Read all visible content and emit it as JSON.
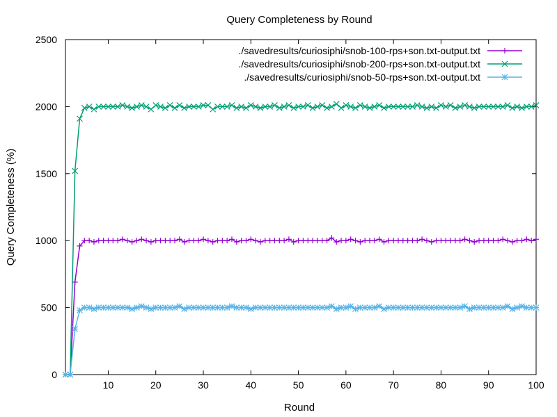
{
  "chart_data": {
    "type": "line",
    "title": "Query Completeness by Round",
    "xlabel": "Round",
    "ylabel": "Query Completeness (%)",
    "xlim": [
      1,
      100
    ],
    "ylim": [
      0,
      2500
    ],
    "xticks": [
      10,
      20,
      30,
      40,
      50,
      60,
      70,
      80,
      90,
      100
    ],
    "yticks": [
      0,
      500,
      1000,
      1500,
      2000,
      2500
    ],
    "grid": false,
    "legend_position": "top-right",
    "x": [
      1,
      2,
      3,
      4,
      5,
      6,
      7,
      8,
      9,
      10,
      11,
      12,
      13,
      14,
      15,
      16,
      17,
      18,
      19,
      20,
      21,
      22,
      23,
      24,
      25,
      26,
      27,
      28,
      29,
      30,
      31,
      32,
      33,
      34,
      35,
      36,
      37,
      38,
      39,
      40,
      41,
      42,
      43,
      44,
      45,
      46,
      47,
      48,
      49,
      50,
      51,
      52,
      53,
      54,
      55,
      56,
      57,
      58,
      59,
      60,
      61,
      62,
      63,
      64,
      65,
      66,
      67,
      68,
      69,
      70,
      71,
      72,
      73,
      74,
      75,
      76,
      77,
      78,
      79,
      80,
      81,
      82,
      83,
      84,
      85,
      86,
      87,
      88,
      89,
      90,
      91,
      92,
      93,
      94,
      95,
      96,
      97,
      98,
      99,
      100
    ],
    "series": [
      {
        "name": "./savedresults/curiosiphi/snob-100-rps+son.txt-output.txt",
        "color": "#9400d3",
        "marker": "plus",
        "values": [
          0,
          0,
          690,
          960,
          1000,
          1000,
          990,
          1000,
          1000,
          1000,
          1000,
          1000,
          1010,
          1000,
          990,
          1000,
          1010,
          1000,
          990,
          1000,
          1000,
          1000,
          1000,
          1000,
          1010,
          990,
          1000,
          1000,
          1000,
          1010,
          1000,
          990,
          1000,
          1000,
          1000,
          1010,
          990,
          1000,
          1000,
          1010,
          1000,
          990,
          1000,
          1000,
          1000,
          1000,
          1000,
          1010,
          990,
          1000,
          1000,
          1000,
          1000,
          1000,
          1000,
          1000,
          1020,
          990,
          1000,
          1000,
          1010,
          1000,
          990,
          1000,
          1000,
          1000,
          1010,
          990,
          1000,
          1000,
          1000,
          1000,
          1000,
          1000,
          1000,
          1010,
          1000,
          990,
          1000,
          1000,
          1000,
          1000,
          1000,
          1000,
          1010,
          1000,
          990,
          1000,
          1000,
          1000,
          1000,
          1000,
          1010,
          1000,
          990,
          1000,
          1000,
          1010,
          1000,
          1010
        ]
      },
      {
        "name": "./savedresults/curiosiphi/snob-200-rps+son.txt-output.txt",
        "color": "#009e73",
        "marker": "cross",
        "values": [
          0,
          0,
          1520,
          1910,
          1990,
          2000,
          1980,
          2000,
          2000,
          2000,
          2000,
          2000,
          2010,
          2000,
          1990,
          2000,
          2010,
          2000,
          1980,
          2010,
          2000,
          1990,
          2010,
          1990,
          2010,
          1990,
          2000,
          2000,
          2000,
          2010,
          2010,
          1980,
          2000,
          2000,
          2000,
          2010,
          1990,
          2000,
          1990,
          2010,
          2000,
          1990,
          2000,
          2000,
          2010,
          1990,
          2000,
          2010,
          1990,
          2000,
          2000,
          2010,
          1990,
          2000,
          2010,
          1990,
          2000,
          2020,
          1990,
          2010,
          2000,
          1990,
          2010,
          2000,
          1990,
          2000,
          2010,
          1990,
          2000,
          2000,
          2000,
          2000,
          2000,
          2000,
          2010,
          2000,
          1990,
          2000,
          1990,
          2010,
          2000,
          2010,
          1990,
          2000,
          2010,
          2000,
          1990,
          2000,
          2000,
          2000,
          2000,
          2000,
          2000,
          2010,
          1990,
          2000,
          1990,
          2000,
          2000,
          2010
        ]
      },
      {
        "name": "./savedresults/curiosiphi/snob-50-rps+son.txt-output.txt",
        "color": "#56b4e9",
        "marker": "star",
        "values": [
          0,
          0,
          340,
          480,
          500,
          500,
          490,
          500,
          500,
          500,
          500,
          500,
          500,
          500,
          490,
          500,
          510,
          500,
          490,
          500,
          500,
          500,
          500,
          500,
          510,
          490,
          500,
          500,
          500,
          500,
          500,
          500,
          500,
          500,
          500,
          510,
          500,
          500,
          500,
          490,
          500,
          500,
          500,
          500,
          500,
          500,
          500,
          500,
          500,
          500,
          500,
          500,
          500,
          500,
          500,
          500,
          510,
          490,
          500,
          500,
          510,
          490,
          500,
          500,
          500,
          500,
          510,
          490,
          500,
          500,
          500,
          500,
          500,
          500,
          500,
          500,
          500,
          500,
          500,
          500,
          500,
          500,
          500,
          500,
          510,
          490,
          500,
          500,
          500,
          500,
          500,
          500,
          500,
          510,
          490,
          500,
          510,
          500,
          500,
          500
        ]
      }
    ]
  }
}
